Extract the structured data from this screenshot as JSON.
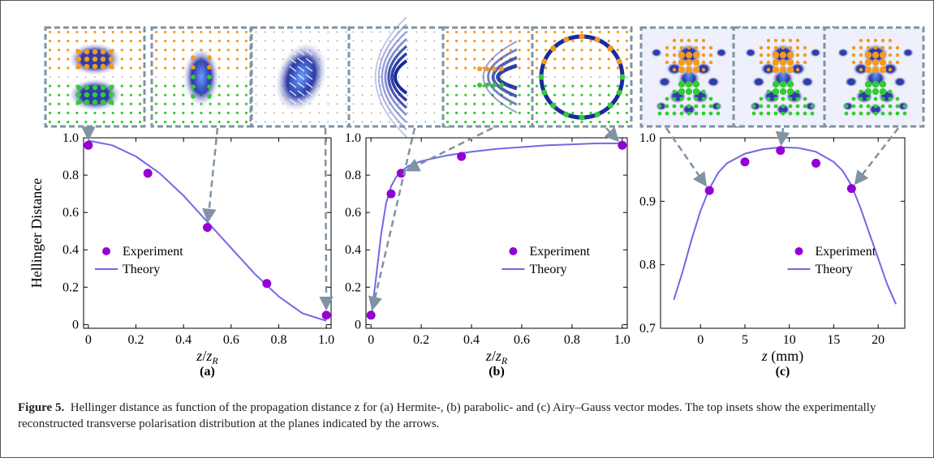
{
  "figure": {
    "caption_label": "Figure 5.",
    "caption_text": "Hellinger distance as function of the propagation distance z for (a) Hermite-, (b) parabolic- and (c) Airy–Gauss vector modes. The top insets show the experimentally reconstructed transverse polarisation distribution at the planes indicated by the arrows."
  },
  "colors": {
    "experiment": "#9400d3",
    "theory": "#7367e6",
    "arrow": "#7f93a3",
    "inset_border": "#7f93a3",
    "dot_orange": "#f39a1f",
    "dot_green": "#33cc33",
    "intensity": "#1a2a9c"
  },
  "chart_data": [
    {
      "type": "scatter",
      "panel_label": "(a)",
      "xlabel": "z/z_R",
      "ylabel": "Hellinger Distance",
      "xlim": [
        -0.02,
        1.02
      ],
      "ylim": [
        -0.02,
        1.0
      ],
      "xticks": [
        0,
        0.2,
        0.4,
        0.6,
        0.8,
        1.0
      ],
      "xtick_labels": [
        "0",
        "0.2",
        "0.4",
        "0.6",
        "0.8",
        "1.0"
      ],
      "yticks": [
        0,
        0.2,
        0.4,
        0.6,
        0.8,
        1.0
      ],
      "ytick_labels": [
        "0",
        "0.2",
        "0.4",
        "0.6",
        "0.8",
        "1.0"
      ],
      "legend": {
        "position": "bottom-left",
        "experiment_label": "Experiment",
        "theory_label": "Theory"
      },
      "experiment": {
        "x": [
          0,
          0.25,
          0.5,
          0.75,
          1.0
        ],
        "y": [
          0.96,
          0.81,
          0.52,
          0.22,
          0.05
        ]
      },
      "theory": {
        "x": [
          0,
          0.1,
          0.2,
          0.3,
          0.4,
          0.5,
          0.6,
          0.7,
          0.8,
          0.9,
          1.0
        ],
        "y": [
          0.985,
          0.96,
          0.9,
          0.81,
          0.69,
          0.55,
          0.41,
          0.27,
          0.15,
          0.06,
          0.02
        ]
      },
      "inset_planes_x": [
        0,
        0.5,
        1.0
      ]
    },
    {
      "type": "scatter",
      "panel_label": "(b)",
      "xlabel": "z/z_R",
      "ylabel": "",
      "xlim": [
        -0.02,
        1.02
      ],
      "ylim": [
        -0.02,
        1.0
      ],
      "xticks": [
        0,
        0.2,
        0.4,
        0.6,
        0.8,
        1.0
      ],
      "xtick_labels": [
        "0",
        "0.2",
        "0.4",
        "0.6",
        "0.8",
        "1.0"
      ],
      "yticks": [
        0,
        0.2,
        0.4,
        0.6,
        0.8,
        1.0
      ],
      "ytick_labels": [
        "0",
        "0.2",
        "0.4",
        "0.6",
        "0.8",
        "1.0"
      ],
      "legend": {
        "position": "bottom-right",
        "experiment_label": "Experiment",
        "theory_label": "Theory"
      },
      "experiment": {
        "x": [
          0,
          0.08,
          0.12,
          0.36,
          1.0
        ],
        "y": [
          0.05,
          0.7,
          0.81,
          0.9,
          0.96
        ]
      },
      "theory": {
        "x": [
          0,
          0.02,
          0.04,
          0.06,
          0.08,
          0.1,
          0.12,
          0.15,
          0.2,
          0.3,
          0.4,
          0.5,
          0.6,
          0.7,
          0.8,
          0.9,
          1.0
        ],
        "y": [
          0.03,
          0.25,
          0.48,
          0.65,
          0.74,
          0.79,
          0.82,
          0.85,
          0.875,
          0.905,
          0.925,
          0.94,
          0.95,
          0.96,
          0.965,
          0.97,
          0.97
        ]
      },
      "inset_planes_x": [
        0,
        0.12,
        1.0
      ]
    },
    {
      "type": "scatter",
      "panel_label": "(c)",
      "xlabel": "z (mm)",
      "ylabel": "",
      "xlim": [
        -4.5,
        23
      ],
      "ylim": [
        0.7,
        1.0
      ],
      "xticks": [
        0,
        5,
        10,
        15,
        20
      ],
      "xtick_labels": [
        "0",
        "5",
        "10",
        "15",
        "20"
      ],
      "yticks": [
        0.7,
        0.8,
        0.9,
        1.0
      ],
      "ytick_labels": [
        "0.7",
        "0.8",
        "0.9",
        "1.0"
      ],
      "legend": {
        "position": "bottom-right",
        "experiment_label": "Experiment",
        "theory_label": "Theory"
      },
      "experiment": {
        "x": [
          1,
          5,
          9,
          13,
          17
        ],
        "y": [
          0.917,
          0.962,
          0.98,
          0.96,
          0.92
        ]
      },
      "theory": {
        "x": [
          -3,
          -2,
          -1,
          0,
          1,
          2,
          3,
          5,
          7,
          9,
          11,
          13,
          15,
          16,
          17,
          18,
          19,
          20,
          21,
          22
        ],
        "y": [
          0.745,
          0.79,
          0.84,
          0.885,
          0.92,
          0.945,
          0.96,
          0.975,
          0.982,
          0.985,
          0.984,
          0.978,
          0.962,
          0.948,
          0.925,
          0.89,
          0.85,
          0.81,
          0.77,
          0.738
        ]
      },
      "inset_planes_x": [
        1,
        9,
        17
      ]
    }
  ]
}
